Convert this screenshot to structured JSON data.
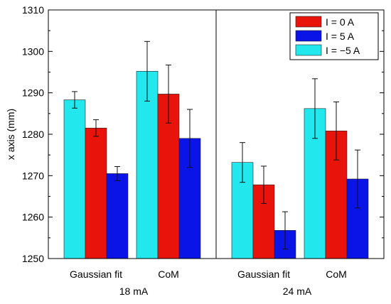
{
  "chart_data": {
    "type": "bar",
    "ylabel": "x axis (mm)",
    "ylim": [
      1250,
      1310
    ],
    "yticks": [
      "1250",
      "1260",
      "1270",
      "1280",
      "1290",
      "1300",
      "1310"
    ],
    "groups": [
      "18 mA",
      "24 mA"
    ],
    "categories": [
      "Gaussian fit",
      "CoM",
      "Gaussian fit",
      "CoM"
    ],
    "legend_position": "top-right",
    "series": [
      {
        "name": "I =  0 A",
        "color": "#e8140c",
        "values": [
          1281.5,
          1289.7,
          1267.8,
          1280.8
        ],
        "errors": [
          2.0,
          7.0,
          4.5,
          7.0
        ]
      },
      {
        "name": "I =  5 A",
        "color": "#0a14e6",
        "values": [
          1270.5,
          1279.0,
          1256.8,
          1269.2
        ],
        "errors": [
          1.7,
          7.0,
          4.5,
          7.0
        ]
      },
      {
        "name": "I = −5 A",
        "color": "#22e8ee",
        "values": [
          1288.3,
          1295.2,
          1273.2,
          1286.2
        ],
        "errors": [
          2.0,
          7.2,
          4.8,
          7.2
        ]
      }
    ]
  }
}
